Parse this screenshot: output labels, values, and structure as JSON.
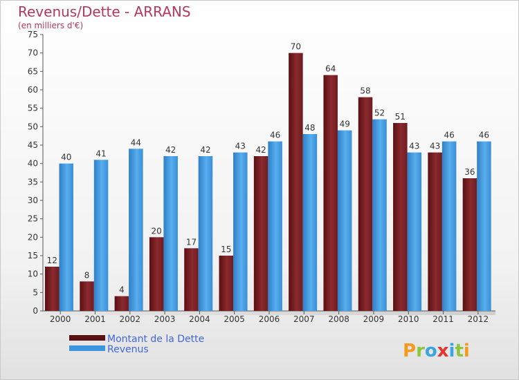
{
  "chart_data": {
    "type": "bar",
    "title": "Revenus/Dette - ARRANS",
    "subtitle": "(en milliers d'€)",
    "categories": [
      "2000",
      "2001",
      "2002",
      "2003",
      "2004",
      "2005",
      "2006",
      "2007",
      "2008",
      "2009",
      "2010",
      "2011",
      "2012"
    ],
    "series": [
      {
        "name": "Montant de la Dette",
        "color": "#7a1f24",
        "values": [
          12,
          8,
          4,
          20,
          17,
          15,
          42,
          70,
          64,
          58,
          51,
          43,
          36
        ]
      },
      {
        "name": "Revenus",
        "color": "#3d96dd",
        "values": [
          40,
          41,
          44,
          42,
          42,
          43,
          46,
          48,
          49,
          52,
          43,
          46,
          46
        ]
      }
    ],
    "ylim": [
      0,
      75
    ],
    "ytick_step": 5,
    "grid": false,
    "legend_position": "bottom-left",
    "data_labels": true
  },
  "logo": {
    "text": "Proxiti",
    "icon": "proxiti-logo"
  }
}
